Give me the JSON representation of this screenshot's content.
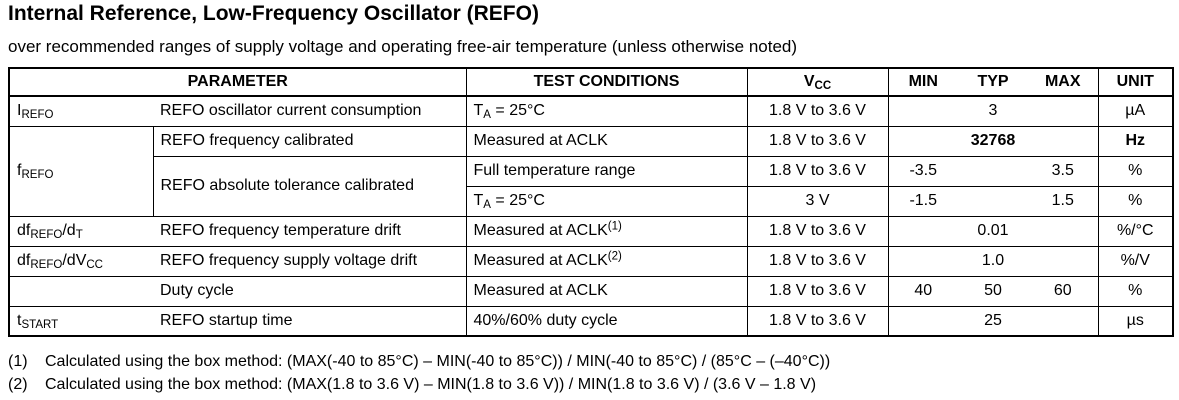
{
  "page": {
    "title": "Internal Reference, Low-Frequency Oscillator (REFO)",
    "subtitle": "over recommended ranges of supply voltage and operating free-air temperature (unless otherwise noted)"
  },
  "table": {
    "headers": {
      "parameter": "PARAMETER",
      "test_conditions": "TEST CONDITIONS",
      "vcc": [
        {
          "t": "V"
        },
        {
          "s": "CC"
        }
      ],
      "min": "MIN",
      "typ": "TYP",
      "max": "MAX",
      "unit": "UNIT"
    },
    "rows": [
      {
        "sym": [
          {
            "t": "I"
          },
          {
            "s": "REFO"
          }
        ],
        "param": "REFO oscillator current consumption",
        "cond": [
          {
            "t": "T"
          },
          {
            "s": "A"
          },
          {
            "t": " = 25°C"
          }
        ],
        "vcc": "1.8 V to 3.6 V",
        "min": "",
        "typ": "3",
        "max": "",
        "unit": "µA"
      },
      {
        "sym": [
          {
            "t": "f"
          },
          {
            "s": "REFO"
          }
        ],
        "param": "REFO frequency calibrated",
        "cond": [
          {
            "t": "Measured at ACLK"
          }
        ],
        "vcc": "1.8 V to 3.6 V",
        "min": "",
        "typ": "32768",
        "max": "",
        "unit": "Hz"
      },
      {
        "param": "REFO absolute tolerance calibrated",
        "cond": [
          {
            "t": "Full temperature range"
          }
        ],
        "vcc": "1.8 V to 3.6 V",
        "min": "-3.5",
        "typ": "",
        "max": "3.5",
        "unit": "%"
      },
      {
        "cond": [
          {
            "t": "T"
          },
          {
            "s": "A"
          },
          {
            "t": " = 25°C"
          }
        ],
        "vcc": "3 V",
        "min": "-1.5",
        "typ": "",
        "max": "1.5",
        "unit": "%"
      },
      {
        "sym": [
          {
            "t": "df"
          },
          {
            "s": "REFO"
          },
          {
            "t": "/d"
          },
          {
            "s": "T"
          }
        ],
        "param": "REFO frequency temperature drift",
        "cond": [
          {
            "t": "Measured at ACLK"
          },
          {
            "p": "(1)"
          }
        ],
        "vcc": "1.8 V to 3.6 V",
        "min": "",
        "typ": "0.01",
        "max": "",
        "unit": "%/°C"
      },
      {
        "sym": [
          {
            "t": "df"
          },
          {
            "s": "REFO"
          },
          {
            "t": "/dV"
          },
          {
            "s": "CC"
          }
        ],
        "param": "REFO frequency supply voltage drift",
        "cond": [
          {
            "t": "Measured at ACLK"
          },
          {
            "p": "(2)"
          }
        ],
        "vcc": "1.8 V to 3.6 V",
        "min": "",
        "typ": "1.0",
        "max": "",
        "unit": "%/V"
      },
      {
        "sym": [],
        "param": "Duty cycle",
        "cond": [
          {
            "t": "Measured at ACLK"
          }
        ],
        "vcc": "1.8 V to 3.6 V",
        "min": "40",
        "typ": "50",
        "max": "60",
        "unit": "%"
      },
      {
        "sym": [
          {
            "t": "t"
          },
          {
            "s": "START"
          }
        ],
        "param": "REFO startup time",
        "cond": [
          {
            "t": "40%/60% duty cycle"
          }
        ],
        "vcc": "1.8 V to 3.6 V",
        "min": "",
        "typ": "25",
        "max": "",
        "unit": "µs"
      }
    ]
  },
  "footnotes": [
    {
      "num": "(1)",
      "text": "Calculated using the box method: (MAX(-40 to 85°C) – MIN(-40 to 85°C)) / MIN(-40 to 85°C) / (85°C – (–40°C))"
    },
    {
      "num": "(2)",
      "text": "Calculated using the box method: (MAX(1.8 to 3.6 V) – MIN(1.8 to 3.6 V)) / MIN(1.8 to 3.6 V) / (3.6 V – 1.8 V)"
    }
  ]
}
